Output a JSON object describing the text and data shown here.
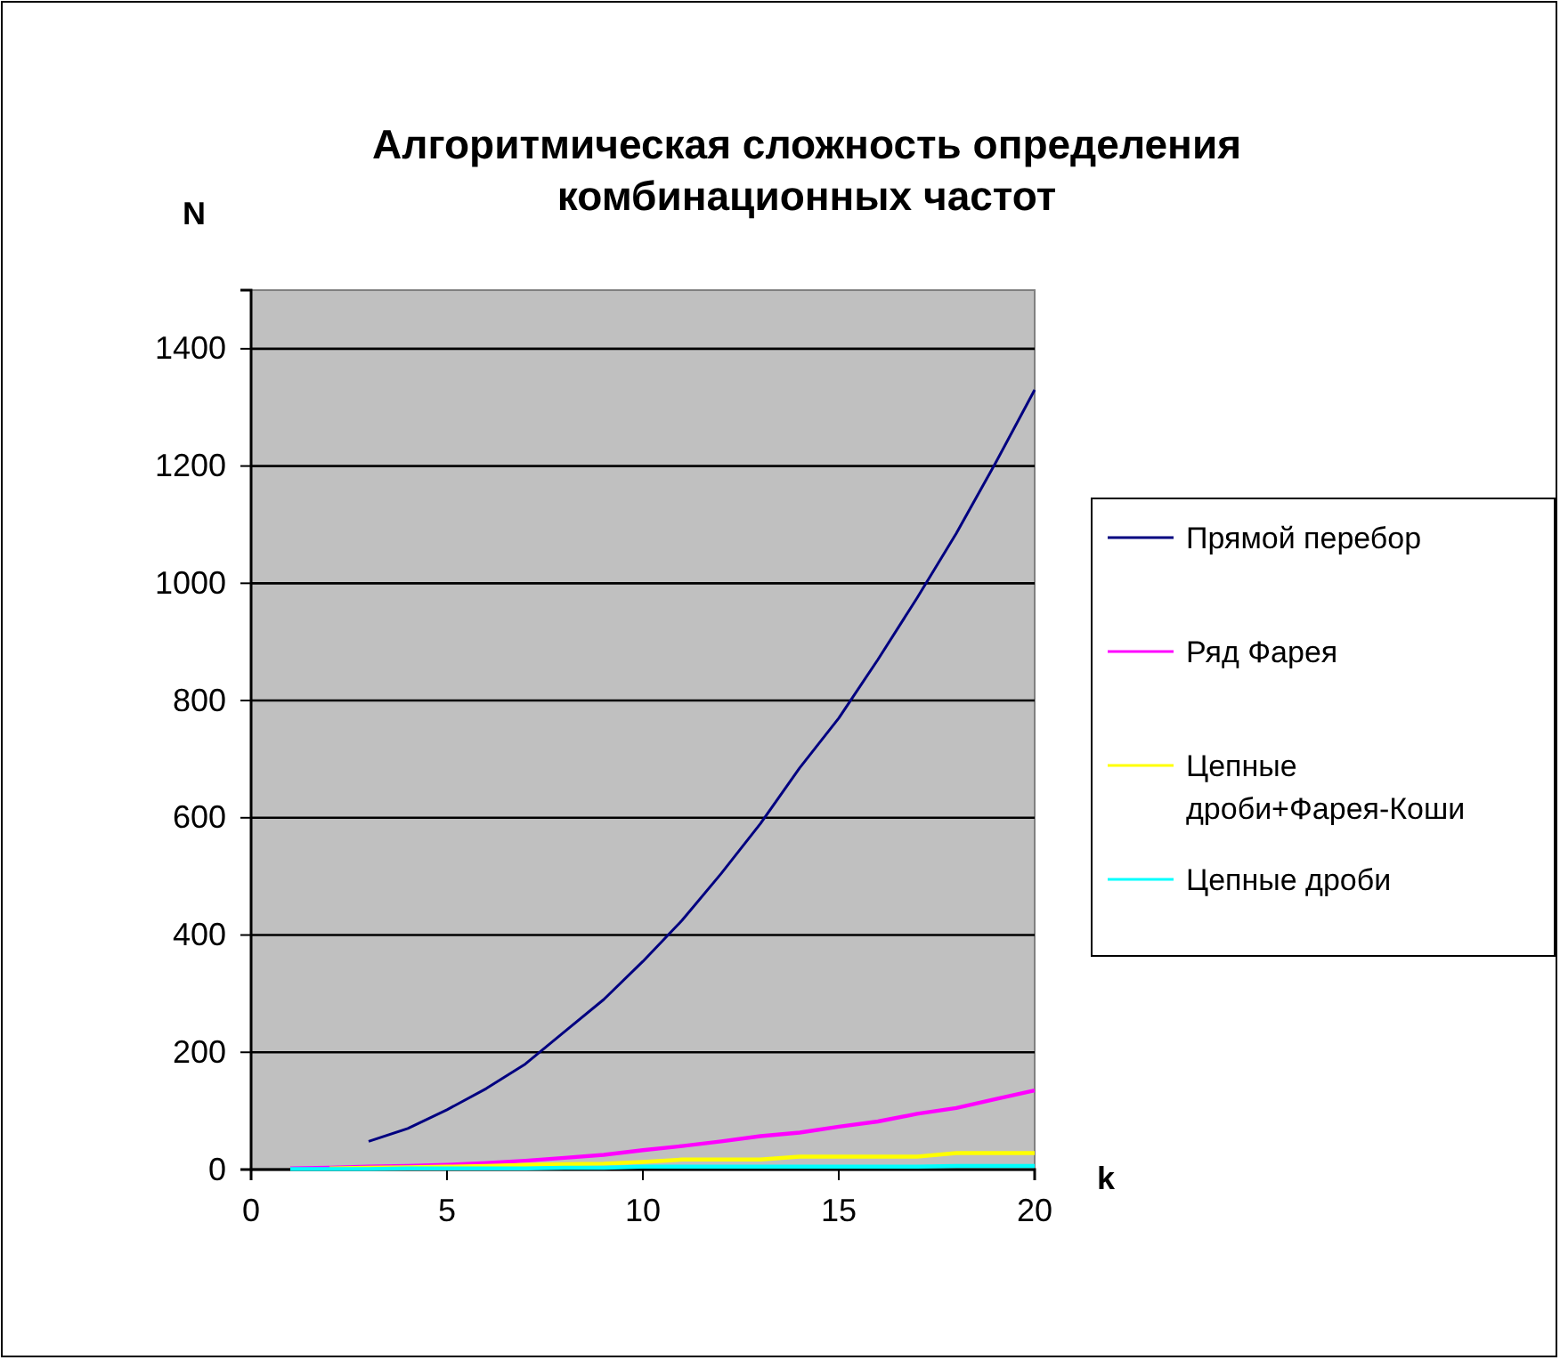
{
  "chart_data": {
    "type": "line",
    "title": "Алгоритмическая сложность определения комбинационных частот",
    "xlabel": "k",
    "ylabel": "N",
    "xlim": [
      0,
      20
    ],
    "xticks": [
      0,
      5,
      10,
      15,
      20
    ],
    "ylim": [
      0,
      1500
    ],
    "yticks": [
      0,
      200,
      400,
      600,
      800,
      1000,
      1200,
      1400
    ],
    "grid": "y",
    "legend": "right",
    "marker": "none",
    "line_style": "solid",
    "series": [
      {
        "name": "Прямой перебор",
        "color": "#000080",
        "x": [
          3,
          4,
          5,
          6,
          7,
          8,
          9,
          10,
          11,
          12,
          13,
          14,
          15,
          16,
          17,
          18,
          19,
          20
        ],
        "values": [
          48,
          70,
          102,
          138,
          180,
          235,
          290,
          355,
          425,
          505,
          590,
          685,
          770,
          870,
          975,
          1085,
          1205,
          1330
        ]
      },
      {
        "name": "Ряд Фарея",
        "color": "#ff00ff",
        "x": [
          1,
          2,
          3,
          4,
          5,
          6,
          7,
          8,
          9,
          10,
          11,
          12,
          13,
          14,
          15,
          16,
          17,
          18,
          19,
          20
        ],
        "values": [
          2,
          3,
          5,
          6,
          8,
          11,
          15,
          20,
          25,
          33,
          40,
          48,
          57,
          63,
          73,
          82,
          95,
          105,
          120,
          135
        ]
      },
      {
        "name": "Цепные дроби+Фарея-Коши",
        "color": "#ffff00",
        "x": [
          2,
          3,
          4,
          5,
          6,
          7,
          8,
          9,
          10,
          11,
          12,
          13,
          14,
          15,
          16,
          17,
          18,
          19,
          20
        ],
        "values": [
          2,
          3,
          4,
          5,
          6,
          8,
          9,
          10,
          13,
          17,
          17,
          17,
          22,
          22,
          22,
          22,
          28,
          28,
          28
        ]
      },
      {
        "name": "Цепные дроби",
        "color": "#00ffff",
        "x": [
          1,
          2,
          3,
          4,
          5,
          6,
          7,
          8,
          9,
          10,
          11,
          12,
          13,
          14,
          15,
          16,
          17,
          18,
          19,
          20
        ],
        "values": [
          1,
          1,
          1,
          2,
          2,
          2,
          2,
          3,
          3,
          5,
          5,
          5,
          5,
          5,
          5,
          5,
          5,
          6,
          6,
          6
        ]
      }
    ]
  }
}
